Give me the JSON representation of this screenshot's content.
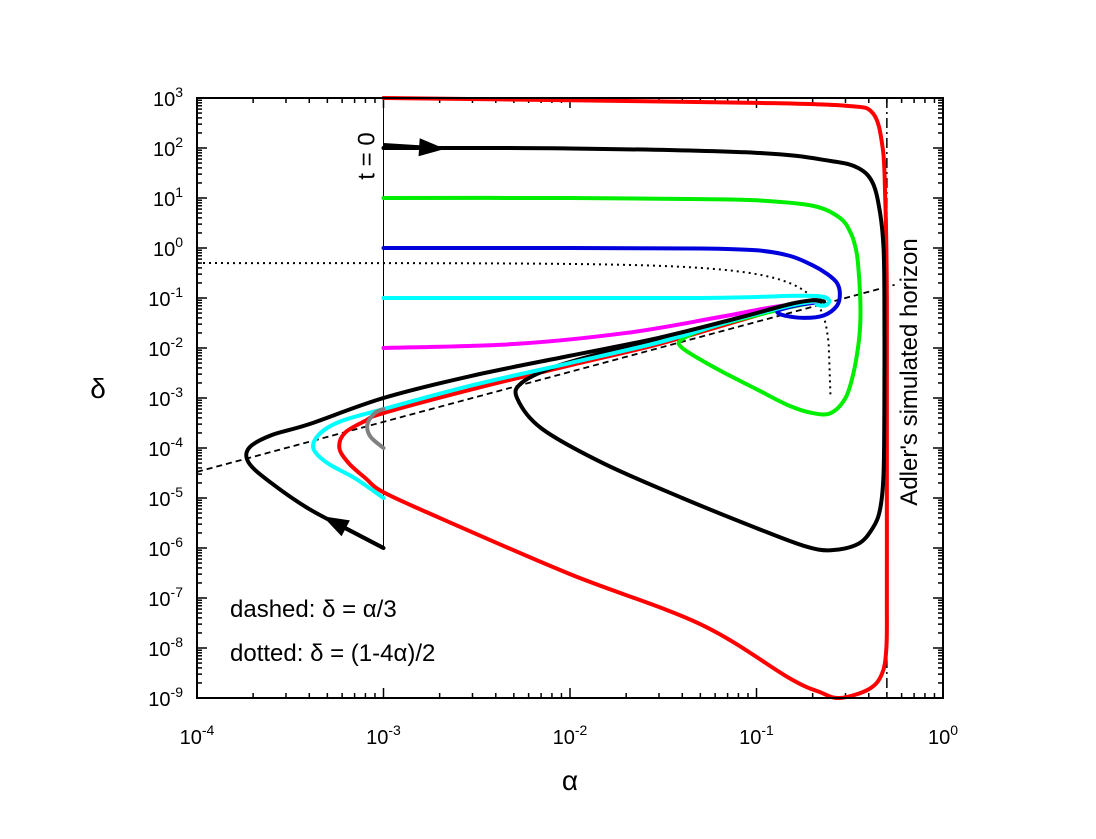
{
  "chart_data": {
    "type": "line",
    "xlabel": "α",
    "ylabel": "δ",
    "x_scale": "log",
    "y_scale": "log",
    "xlim": [
      0.0001,
      1
    ],
    "ylim": [
      1e-09,
      1000
    ],
    "x_ticks": [
      {
        "value": 0.0001,
        "base": "10",
        "exp": "-4"
      },
      {
        "value": 0.001,
        "base": "10",
        "exp": "-3"
      },
      {
        "value": 0.01,
        "base": "10",
        "exp": "-2"
      },
      {
        "value": 0.1,
        "base": "10",
        "exp": "-1"
      },
      {
        "value": 1,
        "base": "10",
        "exp": "0"
      }
    ],
    "y_ticks": [
      {
        "value": 1e-09,
        "base": "10",
        "exp": "-9"
      },
      {
        "value": 1e-08,
        "base": "10",
        "exp": "-8"
      },
      {
        "value": 1e-07,
        "base": "10",
        "exp": "-7"
      },
      {
        "value": 1e-06,
        "base": "10",
        "exp": "-6"
      },
      {
        "value": 1e-05,
        "base": "10",
        "exp": "-5"
      },
      {
        "value": 0.0001,
        "base": "10",
        "exp": "-4"
      },
      {
        "value": 0.001,
        "base": "10",
        "exp": "-3"
      },
      {
        "value": 0.01,
        "base": "10",
        "exp": "-2"
      },
      {
        "value": 0.1,
        "base": "10",
        "exp": "-1"
      },
      {
        "value": 1,
        "base": "10",
        "exp": "0"
      },
      {
        "value": 10,
        "base": "10",
        "exp": "1"
      },
      {
        "value": 100,
        "base": "10",
        "exp": "2"
      },
      {
        "value": 1000,
        "base": "10",
        "exp": "3"
      }
    ],
    "annotations": {
      "t0_label": "t = 0",
      "horizon_label": "Adler's simulated horizon",
      "dashed_legend": "dashed: δ = α/3",
      "dotted_legend": "dotted:   δ = (1-4α)/2"
    },
    "t0_line": {
      "x": 0.001,
      "y_from": 1e-06,
      "y_to": 1000
    },
    "horizon_line": {
      "x": 0.5
    },
    "dashed_curve": {
      "relation": "δ = α/3",
      "x_from": 0.0001,
      "x_to": 0.55
    },
    "dotted_curve": {
      "relation": "δ = (1-4α)/2",
      "x_from": 0.0001,
      "x_to": 0.2495
    },
    "series": [
      {
        "color": "#ff0000",
        "points": [
          [
            0.001,
            1000
          ],
          [
            0.01,
            900
          ],
          [
            0.1,
            800
          ],
          [
            0.3,
            700
          ],
          [
            0.42,
            500
          ],
          [
            0.475,
            100
          ],
          [
            0.49,
            10
          ],
          [
            0.497,
            1
          ],
          [
            0.5,
            0.1
          ],
          [
            0.5,
            0.01
          ],
          [
            0.5,
            0.001
          ],
          [
            0.5,
            1e-05
          ],
          [
            0.5,
            1e-07
          ],
          [
            0.497,
            1e-08
          ],
          [
            0.47,
            3e-09
          ],
          [
            0.4,
            1.5e-09
          ],
          [
            0.28,
            1e-09
          ],
          [
            0.22,
            1.3e-09
          ],
          [
            0.15,
            2.5e-09
          ],
          [
            0.05,
            3e-08
          ],
          [
            0.01,
            3e-07
          ],
          [
            0.002,
            4e-06
          ],
          [
            0.001,
            1.3e-05
          ],
          [
            0.0008,
            2.5e-05
          ],
          [
            0.00065,
            5e-05
          ],
          [
            0.00058,
            0.0001
          ],
          [
            0.00062,
            0.0002
          ],
          [
            0.0008,
            0.00035
          ],
          [
            0.001,
            0.0005
          ],
          [
            0.003,
            0.0015
          ],
          [
            0.01,
            0.0045
          ],
          [
            0.03,
            0.012
          ],
          [
            0.08,
            0.035
          ],
          [
            0.15,
            0.07
          ],
          [
            0.2,
            0.09
          ],
          [
            0.22,
            0.085
          ]
        ]
      },
      {
        "color": "#000000",
        "points": [
          [
            0.001,
            100
          ],
          [
            0.01,
            98
          ],
          [
            0.1,
            80
          ],
          [
            0.25,
            55
          ],
          [
            0.35,
            40
          ],
          [
            0.42,
            20
          ],
          [
            0.46,
            5
          ],
          [
            0.48,
            1
          ],
          [
            0.485,
            0.1
          ],
          [
            0.485,
            0.001
          ],
          [
            0.48,
            3e-05
          ],
          [
            0.46,
            6e-06
          ],
          [
            0.42,
            2.5e-06
          ],
          [
            0.35,
            1.2e-06
          ],
          [
            0.25,
            9e-07
          ],
          [
            0.18,
            1.1e-06
          ],
          [
            0.1,
            2.5e-06
          ],
          [
            0.04,
            1e-05
          ],
          [
            0.015,
            5e-05
          ],
          [
            0.007,
            0.00025
          ],
          [
            0.0052,
            0.001
          ],
          [
            0.0055,
            0.002
          ],
          [
            0.008,
            0.004
          ],
          [
            0.015,
            0.008
          ],
          [
            0.04,
            0.02
          ],
          [
            0.1,
            0.05
          ],
          [
            0.17,
            0.08
          ],
          [
            0.21,
            0.09
          ],
          [
            0.23,
            0.085
          ]
        ]
      },
      {
        "color": "#00ee00",
        "points": [
          [
            0.001,
            10
          ],
          [
            0.01,
            10
          ],
          [
            0.05,
            9.5
          ],
          [
            0.1,
            9
          ],
          [
            0.2,
            7
          ],
          [
            0.28,
            4
          ],
          [
            0.32,
            2
          ],
          [
            0.34,
            1
          ],
          [
            0.35,
            0.5
          ],
          [
            0.36,
            0.1
          ],
          [
            0.36,
            0.03
          ],
          [
            0.35,
            0.01
          ],
          [
            0.33,
            0.003
          ],
          [
            0.3,
            0.001
          ],
          [
            0.25,
            0.0005
          ],
          [
            0.2,
            0.0005
          ],
          [
            0.15,
            0.0007
          ],
          [
            0.1,
            0.0015
          ],
          [
            0.06,
            0.004
          ],
          [
            0.04,
            0.01
          ],
          [
            0.04,
            0.015
          ],
          [
            0.055,
            0.025
          ],
          [
            0.1,
            0.045
          ],
          [
            0.15,
            0.065
          ],
          [
            0.2,
            0.08
          ],
          [
            0.22,
            0.08
          ]
        ]
      },
      {
        "color": "#0000dd",
        "points": [
          [
            0.001,
            1
          ],
          [
            0.01,
            1
          ],
          [
            0.05,
            0.98
          ],
          [
            0.1,
            0.9
          ],
          [
            0.15,
            0.7
          ],
          [
            0.2,
            0.45
          ],
          [
            0.24,
            0.3
          ],
          [
            0.27,
            0.2
          ],
          [
            0.28,
            0.12
          ],
          [
            0.27,
            0.07
          ],
          [
            0.23,
            0.045
          ],
          [
            0.18,
            0.04
          ],
          [
            0.14,
            0.045
          ],
          [
            0.13,
            0.055
          ],
          [
            0.16,
            0.07
          ],
          [
            0.2,
            0.08
          ],
          [
            0.22,
            0.085
          ]
        ]
      },
      {
        "color": "#00ffff",
        "points": [
          [
            0.001,
            0.1
          ],
          [
            0.01,
            0.1
          ],
          [
            0.05,
            0.1
          ],
          [
            0.1,
            0.105
          ],
          [
            0.15,
            0.11
          ],
          [
            0.2,
            0.11
          ],
          [
            0.23,
            0.105
          ],
          [
            0.245,
            0.09
          ],
          [
            0.24,
            0.075
          ],
          [
            0.225,
            0.07
          ],
          [
            0.21,
            0.075
          ],
          [
            0.215,
            0.085
          ],
          [
            0.222,
            0.085
          ]
        ]
      },
      {
        "color": "#ff00ff",
        "points": [
          [
            0.001,
            0.01
          ],
          [
            0.005,
            0.012
          ],
          [
            0.02,
            0.02
          ],
          [
            0.06,
            0.04
          ],
          [
            0.12,
            0.065
          ],
          [
            0.18,
            0.08
          ],
          [
            0.21,
            0.085
          ],
          [
            0.222,
            0.085
          ]
        ]
      },
      {
        "color": "#00ffff",
        "points": [
          [
            0.001,
            1e-05
          ],
          [
            0.0007,
            2.5e-05
          ],
          [
            0.0005,
            5e-05
          ],
          [
            0.00042,
            0.0001
          ],
          [
            0.00046,
            0.0002
          ],
          [
            0.0006,
            0.00035
          ],
          [
            0.001,
            0.0006
          ],
          [
            0.003,
            0.0018
          ],
          [
            0.01,
            0.005
          ],
          [
            0.03,
            0.013
          ],
          [
            0.08,
            0.038
          ],
          [
            0.15,
            0.07
          ],
          [
            0.2,
            0.085
          ],
          [
            0.222,
            0.085
          ]
        ]
      },
      {
        "color": "#808080",
        "points": [
          [
            0.001,
            0.0001
          ],
          [
            0.00085,
            0.00017
          ],
          [
            0.00082,
            0.0003
          ],
          [
            0.0009,
            0.0005
          ],
          [
            0.001,
            0.0006
          ]
        ]
      },
      {
        "color": "#000000",
        "points": [
          [
            0.001,
            1e-06
          ],
          [
            0.0007,
            2e-06
          ],
          [
            0.0004,
            6e-06
          ],
          [
            0.00025,
            2e-05
          ],
          [
            0.00019,
            5e-05
          ],
          [
            0.00019,
            0.0001
          ],
          [
            0.00025,
            0.00018
          ],
          [
            0.0004,
            0.0003
          ],
          [
            0.001,
            0.001
          ],
          [
            0.003,
            0.0028
          ],
          [
            0.01,
            0.007
          ],
          [
            0.03,
            0.016
          ],
          [
            0.08,
            0.04
          ],
          [
            0.15,
            0.075
          ],
          [
            0.2,
            0.09
          ],
          [
            0.222,
            0.085
          ]
        ]
      }
    ],
    "arrows": [
      {
        "color": "#000000",
        "from": [
          0.001,
          115
        ],
        "to": [
          0.0018,
          100
        ]
      },
      {
        "color": "#000000",
        "from": [
          0.001,
          1e-06
        ],
        "to": [
          0.00055,
          3.2e-06
        ]
      }
    ]
  }
}
